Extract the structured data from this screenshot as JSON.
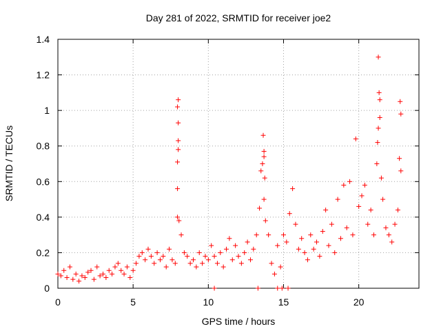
{
  "chart_data": {
    "type": "scatter",
    "title": "Day 281 of 2022, SRMTID for receiver joe2",
    "xlabel": "GPS time / hours",
    "ylabel": "SRMTID / TECUs",
    "xlim": [
      0,
      24
    ],
    "ylim": [
      0,
      1.4
    ],
    "x_ticks": [
      0,
      5,
      10,
      15,
      20
    ],
    "x_tick_labels": [
      "0",
      "5",
      "10",
      "15",
      "20"
    ],
    "y_ticks": [
      0,
      0.2,
      0.4,
      0.6,
      0.8,
      1.0,
      1.2,
      1.4
    ],
    "y_tick_labels": [
      "0",
      "0.2",
      "0.4",
      "0.6",
      "0.8",
      "1",
      "1.2",
      "1.4"
    ],
    "grid": true,
    "marker": "+",
    "color": "#ff0000",
    "series": [
      {
        "name": "joe2",
        "x": [
          0.0,
          0.2,
          0.4,
          0.6,
          0.8,
          1.0,
          1.2,
          1.4,
          1.6,
          1.8,
          2.0,
          2.2,
          2.4,
          2.6,
          2.8,
          3.0,
          3.2,
          3.4,
          3.6,
          3.8,
          4.0,
          4.2,
          4.4,
          4.6,
          4.8,
          5.0,
          5.2,
          5.4,
          5.6,
          5.8,
          6.0,
          6.2,
          6.4,
          6.6,
          6.8,
          7.0,
          7.2,
          7.4,
          7.6,
          7.8,
          7.95,
          8.0,
          8.0,
          8.0,
          8.0,
          7.95,
          7.95,
          7.95,
          8.05,
          8.2,
          8.4,
          8.6,
          8.8,
          9.0,
          9.2,
          9.4,
          9.6,
          9.8,
          10.0,
          10.2,
          10.4,
          10.6,
          10.8,
          11.0,
          11.2,
          11.4,
          11.6,
          11.8,
          12.0,
          12.2,
          12.4,
          12.6,
          12.8,
          13.0,
          13.2,
          13.4,
          13.5,
          13.6,
          13.65,
          13.7,
          13.7,
          13.7,
          13.75,
          13.8,
          14.0,
          14.2,
          14.4,
          14.6,
          14.8,
          15.0,
          15.2,
          15.4,
          15.6,
          15.8,
          16.0,
          16.2,
          16.4,
          16.6,
          16.8,
          17.0,
          17.2,
          17.4,
          17.6,
          17.8,
          18.0,
          18.2,
          18.4,
          18.6,
          18.8,
          19.0,
          19.2,
          19.4,
          19.6,
          19.8,
          20.0,
          20.2,
          20.4,
          20.6,
          20.8,
          21.0,
          21.2,
          21.25,
          21.3,
          21.3,
          21.35,
          21.4,
          21.4,
          21.5,
          21.6,
          21.8,
          22.0,
          22.2,
          22.4,
          22.6,
          22.7,
          22.75,
          22.8,
          22.8,
          10.4,
          13.3,
          14.6,
          14.9,
          15.3
        ],
        "y": [
          0.08,
          0.07,
          0.1,
          0.06,
          0.12,
          0.05,
          0.08,
          0.04,
          0.07,
          0.06,
          0.09,
          0.1,
          0.05,
          0.12,
          0.07,
          0.08,
          0.06,
          0.1,
          0.08,
          0.12,
          0.14,
          0.1,
          0.08,
          0.12,
          0.06,
          0.1,
          0.14,
          0.18,
          0.2,
          0.16,
          0.22,
          0.18,
          0.14,
          0.2,
          0.16,
          0.18,
          0.12,
          0.22,
          0.16,
          0.14,
          0.71,
          0.78,
          0.83,
          0.93,
          1.06,
          1.02,
          0.56,
          0.4,
          0.38,
          0.3,
          0.2,
          0.18,
          0.14,
          0.16,
          0.12,
          0.2,
          0.14,
          0.18,
          0.16,
          0.24,
          0.18,
          0.14,
          0.2,
          0.12,
          0.22,
          0.28,
          0.16,
          0.24,
          0.18,
          0.14,
          0.2,
          0.26,
          0.16,
          0.22,
          0.3,
          0.45,
          0.66,
          0.7,
          0.86,
          0.77,
          0.74,
          0.5,
          0.62,
          0.38,
          0.3,
          0.14,
          0.08,
          0.24,
          0.12,
          0.3,
          0.26,
          0.42,
          0.56,
          0.36,
          0.22,
          0.28,
          0.2,
          0.16,
          0.3,
          0.22,
          0.26,
          0.18,
          0.32,
          0.44,
          0.24,
          0.36,
          0.2,
          0.5,
          0.28,
          0.58,
          0.34,
          0.6,
          0.3,
          0.84,
          0.46,
          0.52,
          0.58,
          0.36,
          0.44,
          0.3,
          0.7,
          0.82,
          0.9,
          1.3,
          1.1,
          1.06,
          0.96,
          0.62,
          0.5,
          0.34,
          0.3,
          0.26,
          0.36,
          0.44,
          0.73,
          1.05,
          0.98,
          0.66,
          0.0,
          0.0,
          0.0,
          0.0,
          0.0
        ]
      }
    ]
  }
}
